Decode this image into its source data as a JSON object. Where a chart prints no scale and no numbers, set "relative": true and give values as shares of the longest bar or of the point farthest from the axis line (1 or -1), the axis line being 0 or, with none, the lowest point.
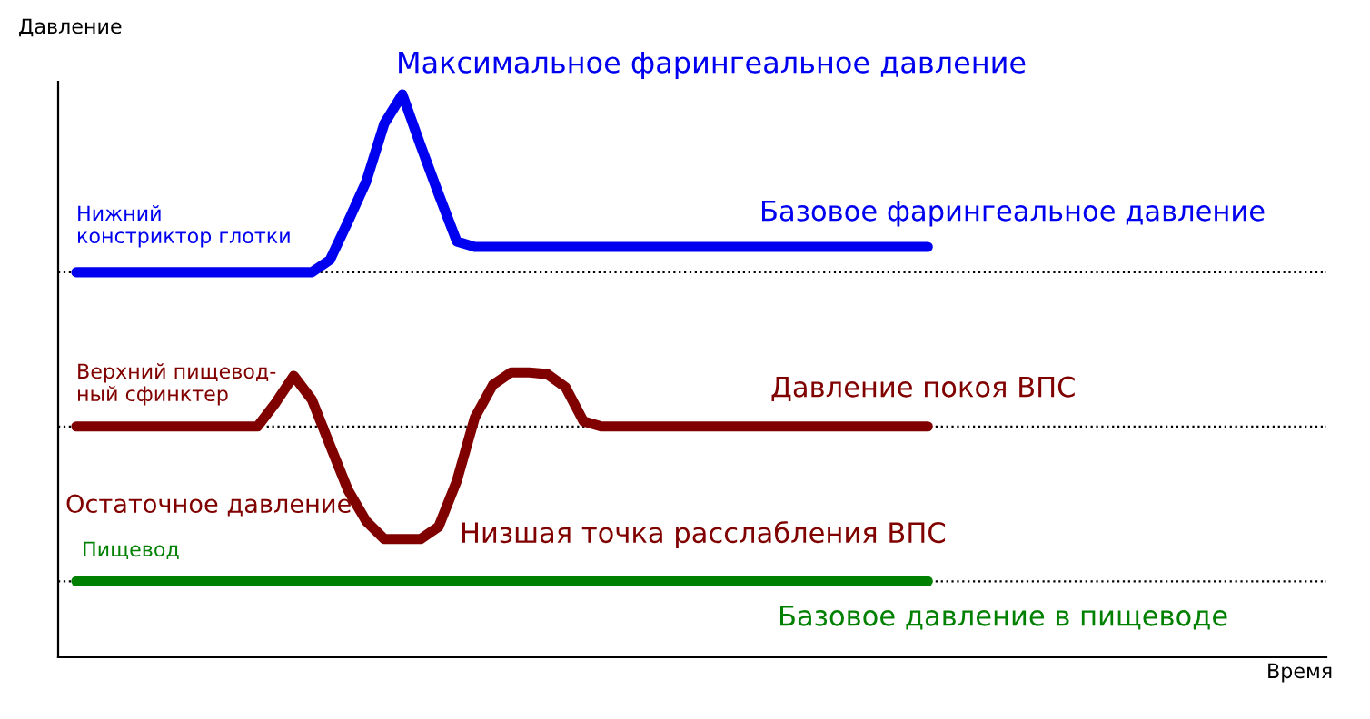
{
  "chart_data": {
    "type": "line",
    "relative": true,
    "xlabel": "Время",
    "ylabel": "Давление",
    "categories": [
      null,
      null,
      null,
      null,
      null,
      null,
      null,
      null,
      null,
      null,
      null,
      null,
      null,
      null,
      null,
      null,
      null,
      null,
      null,
      null,
      null,
      null,
      null,
      null,
      null,
      null,
      null,
      null,
      null,
      null,
      null,
      null,
      null,
      null,
      null,
      null,
      null,
      null,
      null,
      null,
      null,
      null,
      null,
      null,
      null,
      null,
      null,
      null,
      null,
      null,
      null,
      null,
      null,
      null,
      null,
      null,
      null,
      null,
      null,
      null,
      null,
      null,
      null,
      null,
      null,
      null,
      null,
      null,
      null,
      null,
      null
    ],
    "series": [
      {
        "color": "#0000f0",
        "values": [
          null,
          0.684,
          0.684,
          0.684,
          0.684,
          0.684,
          0.684,
          0.684,
          0.684,
          0.684,
          0.684,
          0.684,
          0.684,
          0.684,
          0.684,
          0.706,
          0.774,
          0.845,
          0.948,
          1.0,
          0.91,
          0.823,
          0.739,
          0.729,
          0.729,
          0.729,
          0.729,
          0.729,
          0.729,
          0.729,
          0.729,
          0.729,
          0.729,
          0.729,
          0.729,
          0.729,
          0.729,
          0.729,
          0.729,
          0.729,
          0.729,
          0.729,
          0.729,
          0.729,
          0.729,
          0.729,
          0.729,
          0.729,
          0.729,
          null,
          null,
          null,
          null,
          null,
          null,
          null,
          null,
          null,
          null,
          null,
          null,
          null,
          null,
          null,
          null,
          null,
          null,
          null,
          null,
          null,
          null
        ]
      },
      {
        "color": "#800000",
        "values": [
          null,
          0.41,
          0.41,
          0.41,
          0.41,
          0.41,
          0.41,
          0.41,
          0.41,
          0.41,
          0.41,
          0.41,
          0.452,
          0.5,
          0.458,
          0.377,
          0.297,
          0.242,
          0.21,
          0.21,
          0.21,
          0.232,
          0.313,
          0.426,
          0.484,
          0.506,
          0.506,
          0.503,
          0.48,
          0.419,
          0.41,
          0.41,
          0.41,
          0.41,
          0.41,
          0.41,
          0.41,
          0.41,
          0.41,
          0.41,
          0.41,
          0.41,
          0.41,
          0.41,
          0.41,
          0.41,
          0.41,
          0.41,
          0.41,
          null,
          null,
          null,
          null,
          null,
          null,
          null,
          null,
          null,
          null,
          null,
          null,
          null,
          null,
          null,
          null,
          null,
          null,
          null,
          null,
          null,
          null
        ]
      },
      {
        "color": "#008000",
        "values": [
          null,
          0.135,
          0.135,
          0.135,
          0.135,
          0.135,
          0.135,
          0.135,
          0.135,
          0.135,
          0.135,
          0.135,
          0.135,
          0.135,
          0.135,
          0.135,
          0.135,
          0.135,
          0.135,
          0.135,
          0.135,
          0.135,
          0.135,
          0.135,
          0.135,
          0.135,
          0.135,
          0.135,
          0.135,
          0.135,
          0.135,
          0.135,
          0.135,
          0.135,
          0.135,
          0.135,
          0.135,
          0.135,
          0.135,
          0.135,
          0.135,
          0.135,
          0.135,
          0.135,
          0.135,
          0.135,
          0.135,
          0.135,
          0.135,
          null,
          null,
          null,
          null,
          null,
          null,
          null,
          null,
          null,
          null,
          null,
          null,
          null,
          null,
          null,
          null,
          null,
          null,
          null,
          null,
          null,
          null
        ]
      }
    ],
    "ref_lines": [
      {
        "axis": "y",
        "value": 0.684,
        "color": "#000000",
        "line_style": "dotted"
      },
      {
        "axis": "y",
        "value": 0.41,
        "color": "#000000",
        "line_style": "dotted"
      },
      {
        "axis": "y",
        "value": 0.135,
        "color": "#000000",
        "line_style": "dotted"
      }
    ],
    "annotations": [
      "Максимальное фарингеальное давление",
      "Нижний\nконстриктор глотки",
      "Базовое фарингеальное давление",
      "Верхний пищевод-\nный сфинктер",
      "Давление покоя ВПС",
      "Остаточное давление",
      "Низшая точка расслабления ВПС",
      "Пищевод",
      "Базовое давление в пищеводе"
    ],
    "grid": false,
    "legend": false,
    "marker": "none",
    "line_style": "solid"
  }
}
